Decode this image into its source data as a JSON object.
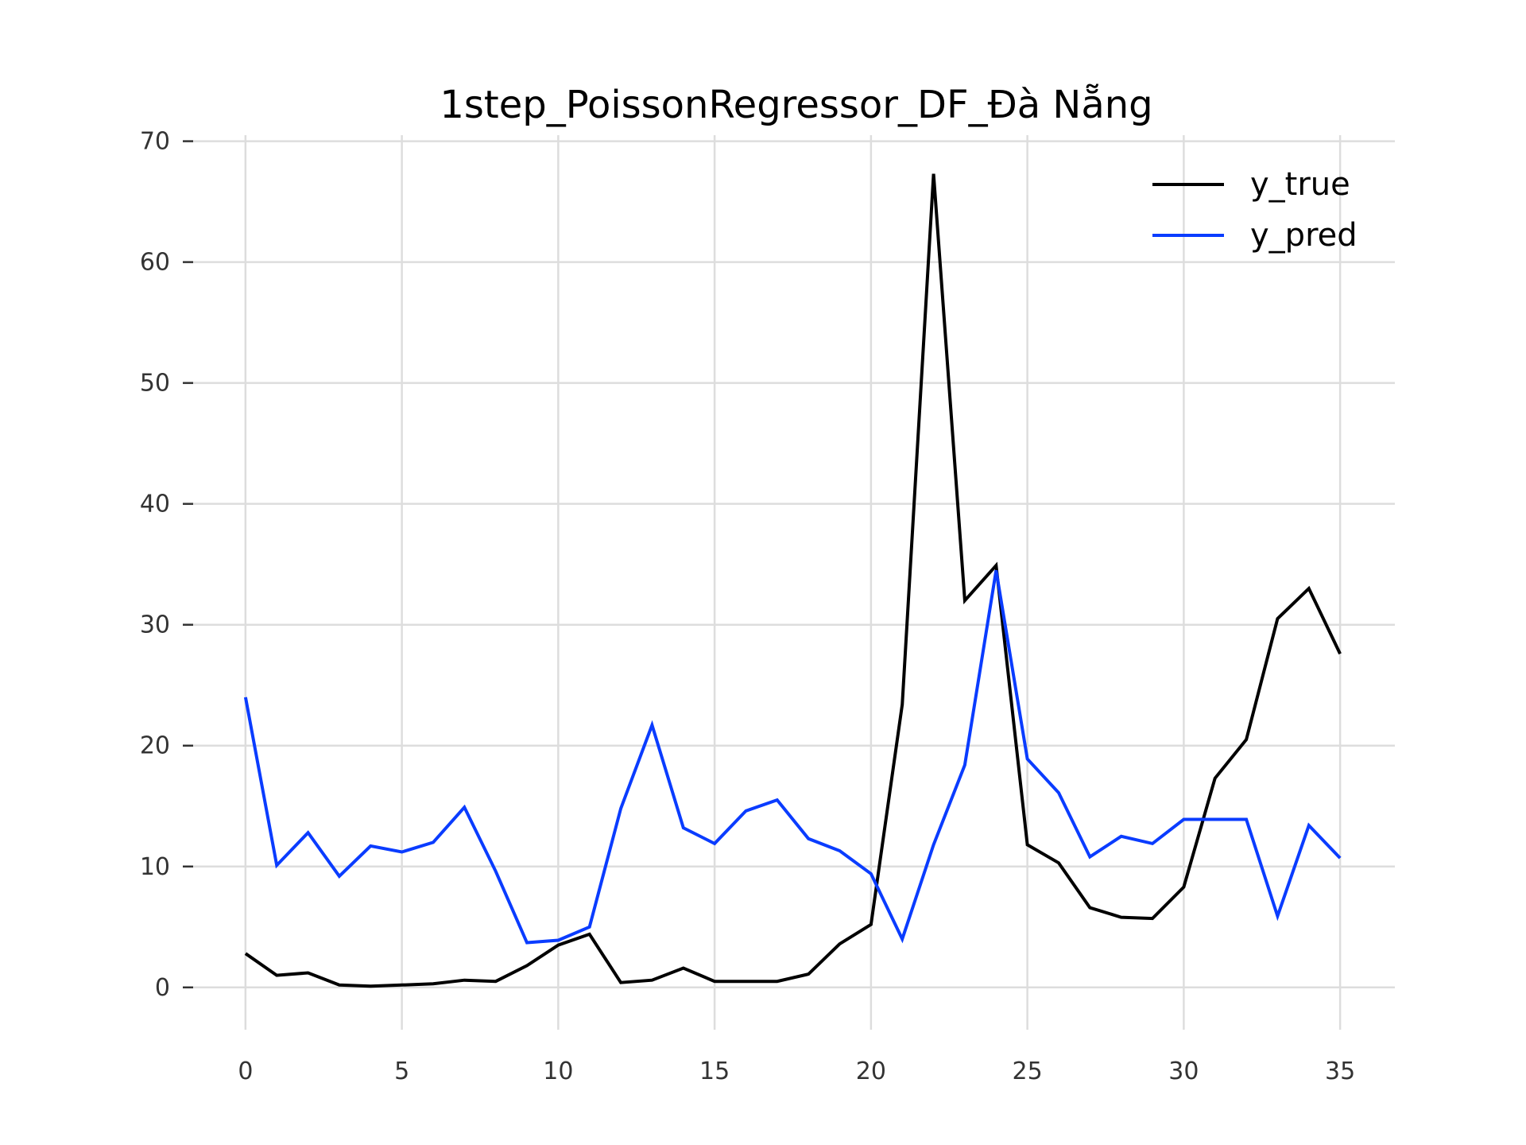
{
  "chart_data": {
    "type": "line",
    "title": "1step_PoissonRegressor_DF_Đà Nẵng",
    "xlabel": "",
    "ylabel": "",
    "x": [
      0,
      1,
      2,
      3,
      4,
      5,
      6,
      7,
      8,
      9,
      10,
      11,
      12,
      13,
      14,
      15,
      16,
      17,
      18,
      19,
      20,
      21,
      22,
      23,
      24,
      25,
      26,
      27,
      28,
      29,
      30,
      31,
      32,
      33,
      34,
      35
    ],
    "xlim": [
      -1.75,
      36.75
    ],
    "ylim": [
      -3.5,
      70.5
    ],
    "xticks": [
      0,
      5,
      10,
      15,
      20,
      25,
      30,
      35
    ],
    "yticks": [
      0,
      10,
      20,
      30,
      40,
      50,
      60,
      70
    ],
    "grid": true,
    "legend_position": "top-right",
    "series": [
      {
        "name": "y_true",
        "color": "#000000",
        "values": [
          2.8,
          1.0,
          1.2,
          0.2,
          0.1,
          0.2,
          0.3,
          0.6,
          0.5,
          1.8,
          3.5,
          4.4,
          0.4,
          0.6,
          1.6,
          0.5,
          0.5,
          0.5,
          1.1,
          3.6,
          5.2,
          23.4,
          67.3,
          32.0,
          34.9,
          11.8,
          10.3,
          6.6,
          5.8,
          5.7,
          8.3,
          17.3,
          20.5,
          30.5,
          33.0,
          27.6
        ]
      },
      {
        "name": "y_pred",
        "color": "#0a3cff",
        "values": [
          24.0,
          10.1,
          12.8,
          9.2,
          11.7,
          11.2,
          12.0,
          14.9,
          9.6,
          3.7,
          3.9,
          5.0,
          14.8,
          21.7,
          13.2,
          11.9,
          14.6,
          15.5,
          12.3,
          11.3,
          9.4,
          4.0,
          11.8,
          18.4,
          34.5,
          18.9,
          16.1,
          10.8,
          12.5,
          11.9,
          13.9,
          13.9,
          13.9,
          5.9,
          13.4,
          10.7
        ]
      }
    ]
  }
}
